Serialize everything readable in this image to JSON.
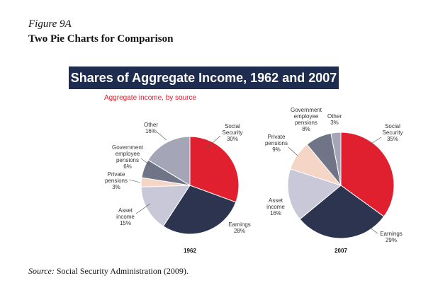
{
  "figure": {
    "label": "Figure 9A",
    "title": "Two Pie Charts for Comparison",
    "source_label": "Source:",
    "source_text": " Social Security Administration (2009)."
  },
  "chart_data": [
    {
      "type": "pie",
      "title": "Shares of Aggregate Income, 1962 and 2007",
      "subtitle": "Aggregate income, by source",
      "year": "1962",
      "slices": [
        {
          "name": "Social Security",
          "value": 30,
          "label": "30%",
          "color": "#e0202e"
        },
        {
          "name": "Earnings",
          "value": 28,
          "label": "28%",
          "color": "#2d3450"
        },
        {
          "name": "Asset income",
          "value": 15,
          "label": "15%",
          "color": "#c9c8d8"
        },
        {
          "name": "Private pensions",
          "value": 3,
          "label": "3%",
          "color": "#f4d5c6"
        },
        {
          "name": "Government employee pensions",
          "value": 6,
          "label": "6%",
          "color": "#6f7486"
        },
        {
          "name": "Other",
          "value": 16,
          "label": "16%",
          "color": "#a4a6b8"
        }
      ]
    },
    {
      "type": "pie",
      "year": "2007",
      "slices": [
        {
          "name": "Social Security",
          "value": 35,
          "label": "35%",
          "color": "#e0202e"
        },
        {
          "name": "Earnings",
          "value": 29,
          "label": "29%",
          "color": "#2d3450"
        },
        {
          "name": "Asset income",
          "value": 16,
          "label": "16%",
          "color": "#c9c8d8"
        },
        {
          "name": "Private pensions",
          "value": 9,
          "label": "9%",
          "color": "#f4d5c6"
        },
        {
          "name": "Government employee pensions",
          "value": 8,
          "label": "8%",
          "color": "#6f7486"
        },
        {
          "name": "Other",
          "value": 3,
          "label": "3%",
          "color": "#a4a6b8"
        }
      ]
    }
  ]
}
